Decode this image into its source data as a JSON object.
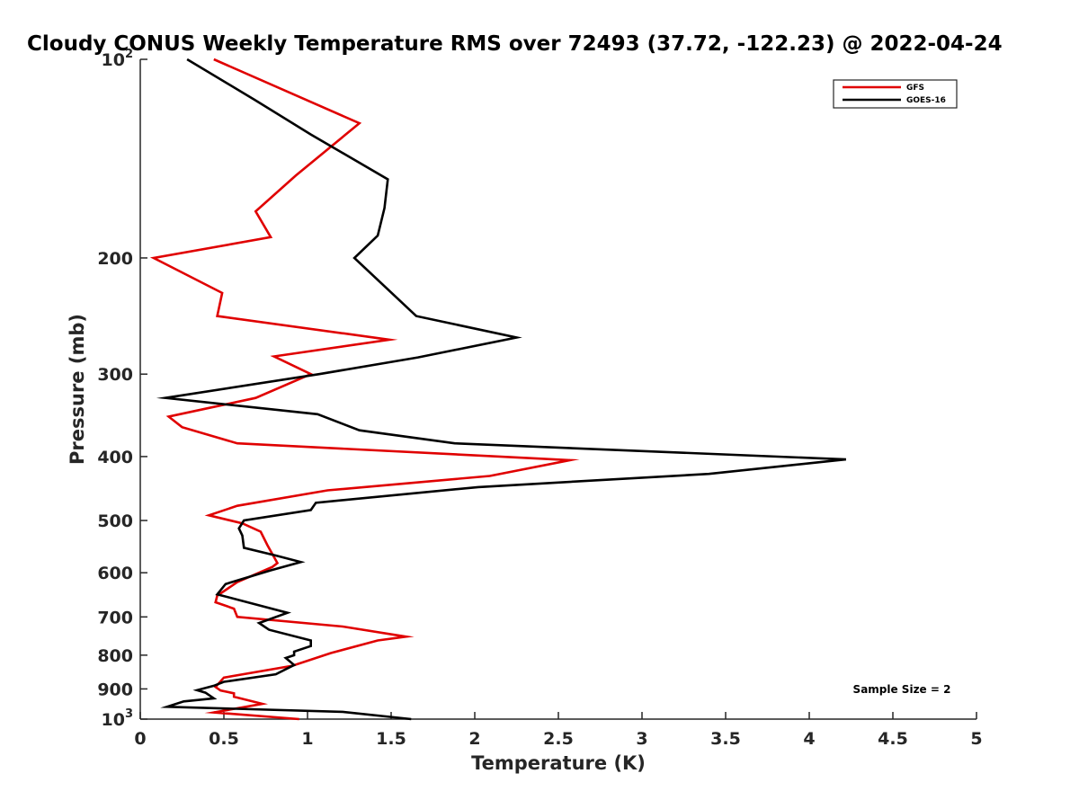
{
  "chart_data": {
    "type": "line",
    "title": "Cloudy CONUS Weekly Temperature RMS over 72493 (37.72, -122.23) @ 2022-04-24",
    "xlabel": "Temperature (K)",
    "ylabel": "Pressure (mb)",
    "xlim": [
      0,
      5
    ],
    "ylim": [
      100,
      1000
    ],
    "yscale": "log",
    "yaxis_reversed": true,
    "grid": false,
    "legend_position": "top-right",
    "x_ticks": [
      "0",
      "0.5",
      "1",
      "1.5",
      "2",
      "2.5",
      "3",
      "3.5",
      "4",
      "4.5",
      "5"
    ],
    "y_ticks": [
      {
        "value": 100,
        "base": "10",
        "exp": "2"
      },
      {
        "value": 200,
        "label": "200"
      },
      {
        "value": 300,
        "label": "300"
      },
      {
        "value": 400,
        "label": "400"
      },
      {
        "value": 500,
        "label": "500"
      },
      {
        "value": 600,
        "label": "600"
      },
      {
        "value": 700,
        "label": "700"
      },
      {
        "value": 800,
        "label": "800"
      },
      {
        "value": 900,
        "label": "900"
      },
      {
        "value": 1000,
        "base": "10",
        "exp": "3"
      }
    ],
    "annotation": "Sample Size = 2",
    "series": [
      {
        "name": "GFS",
        "color": "#e00000",
        "points": [
          [
            0.44,
            100
          ],
          [
            1.31,
            125
          ],
          [
            0.93,
            150
          ],
          [
            0.69,
            170
          ],
          [
            0.78,
            186
          ],
          [
            0.08,
            200
          ],
          [
            0.49,
            226
          ],
          [
            0.46,
            245
          ],
          [
            1.49,
            266
          ],
          [
            0.8,
            282
          ],
          [
            1.02,
            300
          ],
          [
            0.69,
            326
          ],
          [
            0.17,
            348
          ],
          [
            0.25,
            361
          ],
          [
            0.58,
            382
          ],
          [
            2.57,
            405
          ],
          [
            2.09,
            428
          ],
          [
            1.12,
            450
          ],
          [
            0.58,
            475
          ],
          [
            0.41,
            491
          ],
          [
            0.61,
            505
          ],
          [
            0.72,
            520
          ],
          [
            0.76,
            545
          ],
          [
            0.82,
            580
          ],
          [
            0.79,
            588
          ],
          [
            0.58,
            620
          ],
          [
            0.46,
            650
          ],
          [
            0.45,
            665
          ],
          [
            0.56,
            680
          ],
          [
            0.58,
            700
          ],
          [
            1.21,
            724
          ],
          [
            1.59,
            750
          ],
          [
            1.42,
            760
          ],
          [
            1.14,
            794
          ],
          [
            0.91,
            830
          ],
          [
            0.5,
            865
          ],
          [
            0.45,
            894
          ],
          [
            0.48,
            905
          ],
          [
            0.56,
            914
          ],
          [
            0.56,
            925
          ],
          [
            0.73,
            948
          ],
          [
            0.44,
            977
          ],
          [
            0.95,
            1000
          ]
        ]
      },
      {
        "name": "GOES-16",
        "color": "#000000",
        "points": [
          [
            0.28,
            100
          ],
          [
            0.68,
            115
          ],
          [
            1.02,
            130
          ],
          [
            1.48,
            152
          ],
          [
            1.46,
            168
          ],
          [
            1.42,
            185
          ],
          [
            1.28,
            200
          ],
          [
            1.65,
            245
          ],
          [
            2.25,
            264
          ],
          [
            1.66,
            283
          ],
          [
            1.07,
            300
          ],
          [
            0.15,
            326
          ],
          [
            1.06,
            345
          ],
          [
            1.31,
            365
          ],
          [
            1.88,
            382
          ],
          [
            4.22,
            404
          ],
          [
            3.4,
            425
          ],
          [
            2.02,
            445
          ],
          [
            1.05,
            470
          ],
          [
            1.02,
            482
          ],
          [
            0.62,
            500
          ],
          [
            0.59,
            514
          ],
          [
            0.61,
            527
          ],
          [
            0.62,
            550
          ],
          [
            0.81,
            565
          ],
          [
            0.96,
            578
          ],
          [
            0.78,
            595
          ],
          [
            0.51,
            624
          ],
          [
            0.46,
            647
          ],
          [
            0.88,
            690
          ],
          [
            0.71,
            715
          ],
          [
            0.77,
            732
          ],
          [
            1.02,
            760
          ],
          [
            1.02,
            775
          ],
          [
            0.92,
            790
          ],
          [
            0.92,
            800
          ],
          [
            0.87,
            808
          ],
          [
            0.92,
            828
          ],
          [
            0.81,
            855
          ],
          [
            0.5,
            878
          ],
          [
            0.44,
            890
          ],
          [
            0.34,
            904
          ],
          [
            0.39,
            912
          ],
          [
            0.44,
            930
          ],
          [
            0.26,
            940
          ],
          [
            0.16,
            958
          ],
          [
            1.21,
            975
          ],
          [
            1.62,
            1000
          ]
        ]
      }
    ]
  }
}
